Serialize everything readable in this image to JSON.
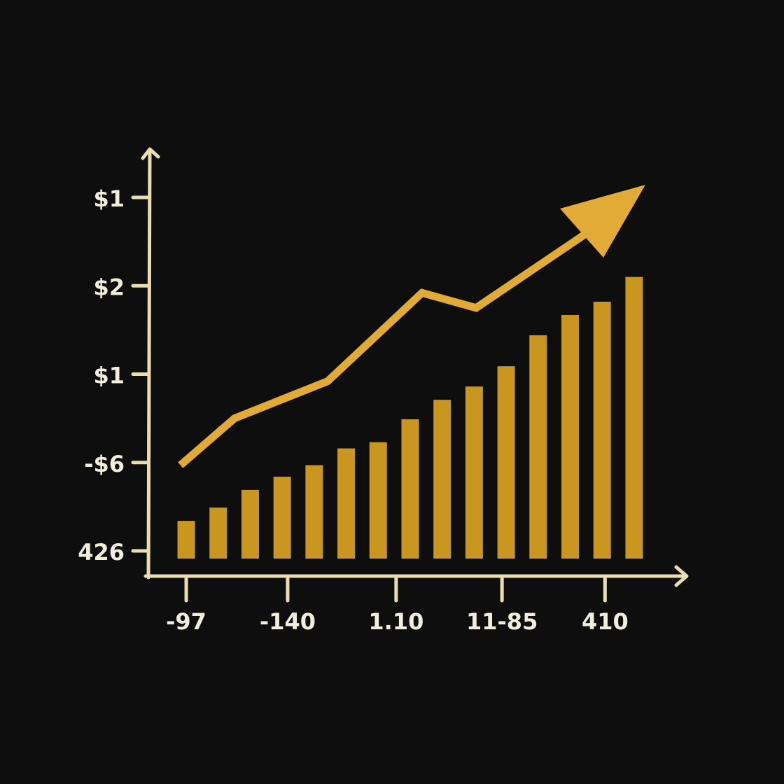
{
  "chart_data": {
    "type": "bar",
    "xlim": [
      -1.27,
      15.73
    ],
    "ylim": [
      -0.3,
      4.5
    ],
    "yticks": [
      {
        "value": 0,
        "label": "426"
      },
      {
        "value": 1,
        "label": "-$6"
      },
      {
        "value": 2,
        "label": "$1"
      },
      {
        "value": 3,
        "label": "$2"
      },
      {
        "value": 4,
        "label": "$1"
      }
    ],
    "xticks": [
      {
        "value": 0,
        "label": "-97"
      },
      {
        "value": 3.17,
        "label": "-140"
      },
      {
        "value": 6.56,
        "label": "1.10"
      },
      {
        "value": 9.87,
        "label": "11-85"
      },
      {
        "value": 13.09,
        "label": "410"
      }
    ],
    "series": [
      {
        "type": "bar",
        "color": "#c9971f",
        "x": [
          0,
          1,
          2,
          3,
          4,
          5,
          6,
          7,
          8,
          9,
          10,
          11,
          12,
          13,
          14
        ],
        "values": [
          0.34,
          0.49,
          0.69,
          0.84,
          0.97,
          1.16,
          1.23,
          1.49,
          1.71,
          1.86,
          2.09,
          2.44,
          2.67,
          2.82,
          3.1
        ]
      },
      {
        "type": "line",
        "color": "#e2ab36",
        "x": [
          -0.18,
          1.51,
          4.42,
          7.37,
          9.06,
          12.78
        ],
        "values": [
          0.97,
          1.5,
          1.92,
          2.92,
          2.75,
          3.66
        ]
      }
    ]
  }
}
